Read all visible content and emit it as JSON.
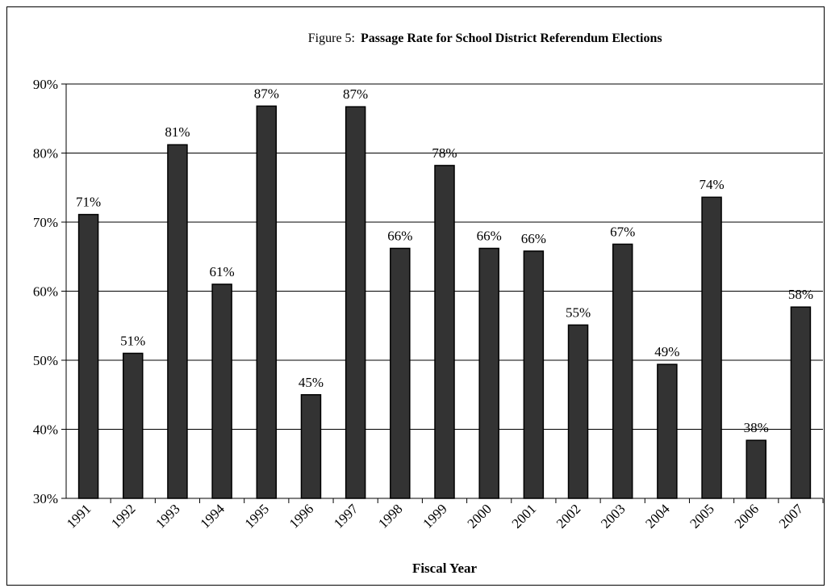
{
  "chart_data": {
    "type": "bar",
    "figure_label": "Figure 5:",
    "title": "Passage Rate for School District Referendum Elections",
    "x_label": "Fiscal Year",
    "categories": [
      "1991",
      "1992",
      "1993",
      "1994",
      "1995",
      "1996",
      "1997",
      "1998",
      "1999",
      "2000",
      "2001",
      "2002",
      "2003",
      "2004",
      "2005",
      "2006",
      "2007"
    ],
    "values": [
      71.1,
      51,
      81.2,
      61,
      86.8,
      45,
      86.7,
      66.2,
      78.2,
      66.2,
      65.8,
      55.1,
      66.8,
      49.4,
      73.6,
      38.4,
      57.7
    ],
    "value_labels": [
      "71%",
      "51%",
      "81%",
      "61%",
      "87%",
      "45%",
      "87%",
      "66%",
      "78%",
      "66%",
      "66%",
      "55%",
      "67%",
      "49%",
      "74%",
      "38%",
      "58%"
    ],
    "color": "#333333",
    "ylim": [
      30,
      90
    ],
    "yticks": [
      {
        "value": 30,
        "label": "30%"
      },
      {
        "value": 40,
        "label": "40%"
      },
      {
        "value": 50,
        "label": "50%"
      },
      {
        "value": 60,
        "label": "60%"
      },
      {
        "value": 70,
        "label": "70%"
      },
      {
        "value": 80,
        "label": "80%"
      },
      {
        "value": 90,
        "label": "90%"
      }
    ],
    "grid": true
  }
}
